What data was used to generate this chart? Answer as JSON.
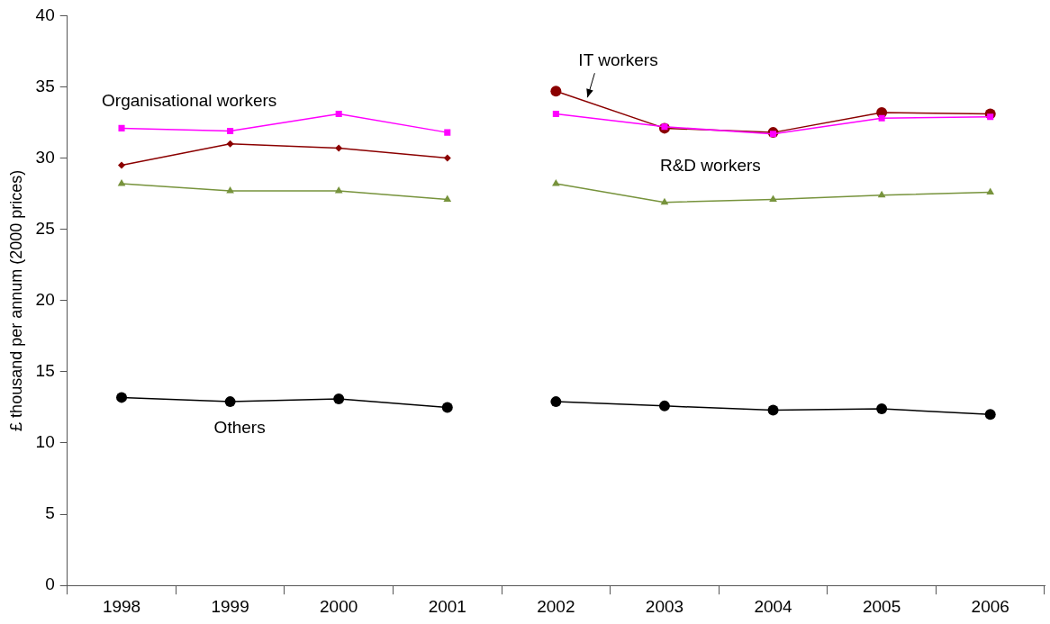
{
  "chart_data": {
    "type": "line",
    "ylabel": "£ thousand per annum (2000 prices)",
    "categories": [
      "1998",
      "1999",
      "2000",
      "2001",
      "2002",
      "2003",
      "2004",
      "2005",
      "2006"
    ],
    "series": [
      {
        "name": "Organisational workers",
        "color": "#ff00ff",
        "marker": "square",
        "values": [
          32.1,
          31.9,
          33.1,
          31.8,
          null,
          null,
          null,
          null,
          null
        ]
      },
      {
        "color": "#ff00ff",
        "marker": "square",
        "values": [
          null,
          null,
          null,
          null,
          33.1,
          32.2,
          31.7,
          32.8,
          32.9
        ]
      },
      {
        "color": "#8b0000",
        "marker": "diamond",
        "values": [
          29.5,
          31.0,
          30.7,
          30.0,
          null,
          null,
          null,
          null,
          null
        ]
      },
      {
        "name": "IT workers",
        "color": "#8b0000",
        "marker": "circle",
        "values": [
          null,
          null,
          null,
          null,
          34.7,
          32.1,
          31.8,
          33.2,
          33.1
        ]
      },
      {
        "color": "#77933c",
        "marker": "triangle",
        "values": [
          28.2,
          27.7,
          27.7,
          27.1,
          null,
          null,
          null,
          null,
          null
        ]
      },
      {
        "name": "R&D workers",
        "color": "#77933c",
        "marker": "triangle",
        "values": [
          null,
          null,
          null,
          null,
          28.2,
          26.9,
          27.1,
          27.4,
          27.6
        ]
      },
      {
        "name": "Others",
        "color": "#000000",
        "marker": "circle",
        "values": [
          13.2,
          12.9,
          13.1,
          12.5,
          null,
          null,
          null,
          null,
          null
        ]
      },
      {
        "color": "#000000",
        "marker": "circle",
        "values": [
          null,
          null,
          null,
          null,
          12.9,
          12.6,
          12.3,
          12.4,
          12.0
        ]
      }
    ],
    "ylim": [
      0,
      40
    ],
    "yticks": [
      0,
      5,
      10,
      15,
      20,
      25,
      30,
      35,
      40
    ],
    "grid": false,
    "legend": false
  }
}
